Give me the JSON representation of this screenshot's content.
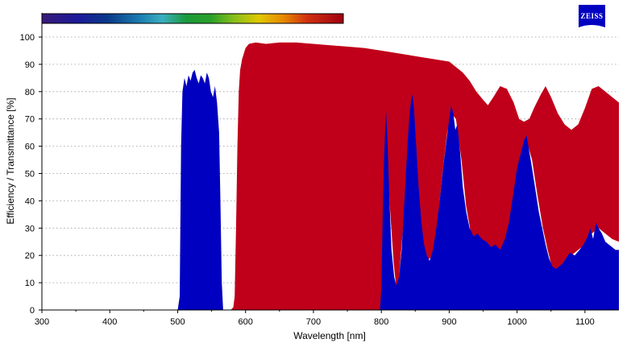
{
  "chart_data": {
    "type": "area",
    "xlabel": "Wavelength [nm]",
    "ylabel": "Efficiency / Transmittance [%]",
    "xlim": [
      300,
      1150
    ],
    "ylim": [
      0,
      105
    ],
    "x_ticks": [
      300,
      400,
      500,
      600,
      700,
      800,
      900,
      1000,
      1100
    ],
    "y_ticks": [
      0,
      10,
      20,
      30,
      40,
      50,
      60,
      70,
      80,
      90,
      100
    ],
    "grid": true,
    "grid_style": "dotted-horizontal",
    "spectrum_bar": true,
    "colors": {
      "transmittance": "#c0001a",
      "efficiency": "#0000c0"
    },
    "series": [
      {
        "color": "#c0001a",
        "points": [
          [
            578,
            0
          ],
          [
            582,
            1
          ],
          [
            584,
            5
          ],
          [
            586,
            30
          ],
          [
            588,
            60
          ],
          [
            590,
            80
          ],
          [
            592,
            88
          ],
          [
            595,
            92
          ],
          [
            600,
            96
          ],
          [
            605,
            97.5
          ],
          [
            615,
            98
          ],
          [
            630,
            97.5
          ],
          [
            650,
            98
          ],
          [
            675,
            98
          ],
          [
            700,
            97.5
          ],
          [
            725,
            97
          ],
          [
            750,
            96.5
          ],
          [
            775,
            96
          ],
          [
            800,
            95
          ],
          [
            825,
            94
          ],
          [
            850,
            93
          ],
          [
            875,
            92
          ],
          [
            900,
            91
          ],
          [
            910,
            89
          ],
          [
            920,
            87
          ],
          [
            930,
            84
          ],
          [
            940,
            80
          ],
          [
            950,
            77
          ],
          [
            957,
            75
          ],
          [
            965,
            78
          ],
          [
            975,
            82
          ],
          [
            985,
            81
          ],
          [
            995,
            76
          ],
          [
            1003,
            70
          ],
          [
            1010,
            69
          ],
          [
            1018,
            70
          ],
          [
            1025,
            74
          ],
          [
            1035,
            79
          ],
          [
            1042,
            82
          ],
          [
            1050,
            78
          ],
          [
            1060,
            72
          ],
          [
            1070,
            68
          ],
          [
            1080,
            66
          ],
          [
            1090,
            68
          ],
          [
            1100,
            74
          ],
          [
            1110,
            81
          ],
          [
            1120,
            82
          ],
          [
            1130,
            80
          ],
          [
            1140,
            78
          ],
          [
            1150,
            76
          ],
          [
            1150,
            0
          ]
        ],
        "lower_bound": [
          [
            578,
            0
          ],
          [
            800,
            0
          ],
          [
            802,
            10
          ],
          [
            806,
            50
          ],
          [
            808,
            62
          ],
          [
            812,
            40
          ],
          [
            818,
            18
          ],
          [
            822,
            8
          ],
          [
            826,
            12
          ],
          [
            832,
            30
          ],
          [
            838,
            55
          ],
          [
            843,
            72
          ],
          [
            846,
            78
          ],
          [
            850,
            65
          ],
          [
            856,
            40
          ],
          [
            862,
            22
          ],
          [
            868,
            18
          ],
          [
            875,
            20
          ],
          [
            882,
            30
          ],
          [
            890,
            50
          ],
          [
            897,
            65
          ],
          [
            903,
            72
          ],
          [
            910,
            70
          ],
          [
            918,
            55
          ],
          [
            925,
            38
          ],
          [
            932,
            28
          ],
          [
            940,
            25
          ],
          [
            950,
            24
          ],
          [
            960,
            22
          ],
          [
            970,
            20
          ],
          [
            980,
            22
          ],
          [
            990,
            28
          ],
          [
            1000,
            42
          ],
          [
            1008,
            58
          ],
          [
            1014,
            62
          ],
          [
            1022,
            55
          ],
          [
            1030,
            42
          ],
          [
            1038,
            30
          ],
          [
            1045,
            22
          ],
          [
            1052,
            15
          ],
          [
            1058,
            14
          ],
          [
            1065,
            16
          ],
          [
            1072,
            19
          ],
          [
            1080,
            20
          ],
          [
            1090,
            22
          ],
          [
            1100,
            24
          ],
          [
            1110,
            28
          ],
          [
            1120,
            30
          ],
          [
            1130,
            28
          ],
          [
            1140,
            26
          ],
          [
            1150,
            25
          ]
        ]
      },
      {
        "color": "#0000c0",
        "points": [
          [
            500,
            0
          ],
          [
            503,
            5
          ],
          [
            505,
            60
          ],
          [
            507,
            80
          ],
          [
            510,
            85
          ],
          [
            513,
            82
          ],
          [
            516,
            86
          ],
          [
            519,
            84
          ],
          [
            522,
            87
          ],
          [
            525,
            88
          ],
          [
            528,
            85
          ],
          [
            531,
            83
          ],
          [
            534,
            86
          ],
          [
            537,
            85
          ],
          [
            540,
            83
          ],
          [
            543,
            87
          ],
          [
            546,
            85
          ],
          [
            549,
            80
          ],
          [
            552,
            78
          ],
          [
            555,
            82
          ],
          [
            558,
            76
          ],
          [
            561,
            65
          ],
          [
            563,
            40
          ],
          [
            565,
            10
          ],
          [
            567,
            0
          ],
          [
            798,
            0
          ],
          [
            800,
            8
          ],
          [
            802,
            35
          ],
          [
            804,
            55
          ],
          [
            806,
            68
          ],
          [
            807,
            73
          ],
          [
            809,
            62
          ],
          [
            812,
            40
          ],
          [
            815,
            22
          ],
          [
            819,
            12
          ],
          [
            822,
            9
          ],
          [
            826,
            12
          ],
          [
            830,
            22
          ],
          [
            834,
            40
          ],
          [
            838,
            58
          ],
          [
            841,
            70
          ],
          [
            844,
            77
          ],
          [
            846,
            79
          ],
          [
            848,
            74
          ],
          [
            851,
            62
          ],
          [
            855,
            45
          ],
          [
            859,
            32
          ],
          [
            863,
            24
          ],
          [
            867,
            20
          ],
          [
            871,
            18
          ],
          [
            876,
            22
          ],
          [
            881,
            30
          ],
          [
            886,
            40
          ],
          [
            891,
            52
          ],
          [
            896,
            62
          ],
          [
            900,
            70
          ],
          [
            903,
            75
          ],
          [
            906,
            72
          ],
          [
            909,
            66
          ],
          [
            912,
            68
          ],
          [
            916,
            58
          ],
          [
            920,
            45
          ],
          [
            925,
            36
          ],
          [
            930,
            30
          ],
          [
            936,
            27
          ],
          [
            942,
            28
          ],
          [
            948,
            26
          ],
          [
            955,
            25
          ],
          [
            962,
            23
          ],
          [
            968,
            24
          ],
          [
            975,
            22
          ],
          [
            982,
            26
          ],
          [
            988,
            32
          ],
          [
            994,
            42
          ],
          [
            1000,
            52
          ],
          [
            1006,
            58
          ],
          [
            1010,
            62
          ],
          [
            1014,
            64
          ],
          [
            1018,
            58
          ],
          [
            1022,
            52
          ],
          [
            1027,
            44
          ],
          [
            1032,
            36
          ],
          [
            1037,
            30
          ],
          [
            1042,
            24
          ],
          [
            1047,
            19
          ],
          [
            1052,
            16
          ],
          [
            1057,
            15
          ],
          [
            1062,
            16
          ],
          [
            1067,
            17
          ],
          [
            1072,
            19
          ],
          [
            1078,
            21
          ],
          [
            1085,
            20
          ],
          [
            1092,
            22
          ],
          [
            1098,
            24
          ],
          [
            1104,
            27
          ],
          [
            1108,
            30
          ],
          [
            1112,
            26
          ],
          [
            1116,
            32
          ],
          [
            1120,
            30
          ],
          [
            1125,
            28
          ],
          [
            1130,
            25
          ],
          [
            1135,
            24
          ],
          [
            1140,
            23
          ],
          [
            1145,
            22
          ],
          [
            1150,
            22
          ]
        ]
      }
    ]
  },
  "logo": {
    "text": "ZEISS",
    "color": "#0000c0"
  }
}
